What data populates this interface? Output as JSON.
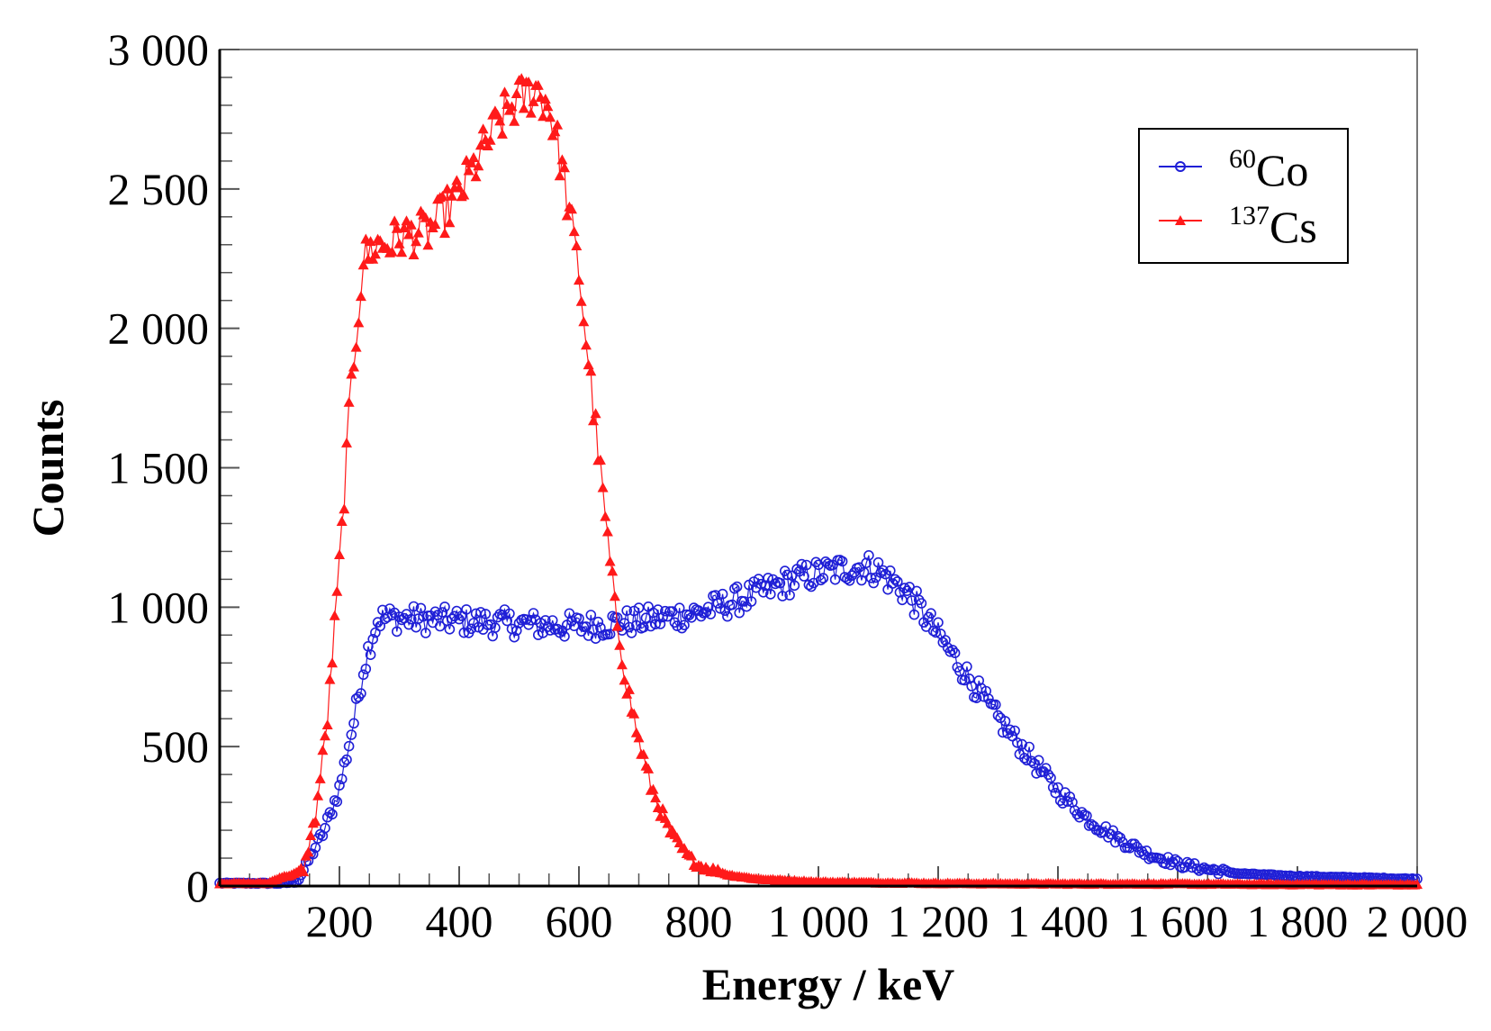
{
  "chart_data": {
    "type": "scatter",
    "title": "",
    "xlabel": "Energy / keV",
    "ylabel": "Counts",
    "xlim": [
      0,
      2000
    ],
    "ylim": [
      0,
      3000
    ],
    "xticks": [
      200,
      400,
      600,
      800,
      1000,
      1200,
      1400,
      1600,
      1800,
      2000
    ],
    "xtick_labels": [
      "200",
      "400",
      "600",
      "800",
      "1 000",
      "1 200",
      "1 400",
      "1 600",
      "1 800",
      "2 000"
    ],
    "yticks": [
      0,
      500,
      1000,
      1500,
      2000,
      2500,
      3000
    ],
    "ytick_labels": [
      "0",
      "500",
      "1 000",
      "1 500",
      "2 000",
      "2 500",
      "3 000"
    ],
    "legend_position": "top-right",
    "series": [
      {
        "name": "60Co",
        "isotope_mass": "60",
        "isotope_symbol": "Co",
        "color": "#1f1fd6",
        "marker": "open-circle",
        "x": [
          0,
          100,
          130,
          150,
          175,
          200,
          225,
          240,
          255,
          265,
          300,
          400,
          500,
          600,
          700,
          800,
          900,
          960,
          1000,
          1050,
          1080,
          1100,
          1150,
          1200,
          1250,
          1300,
          1350,
          1400,
          1450,
          1500,
          1550,
          1600,
          1650,
          1700,
          1800,
          1900,
          2000
        ],
        "y": [
          10,
          10,
          15,
          100,
          200,
          350,
          600,
          780,
          900,
          960,
          960,
          950,
          940,
          930,
          950,
          980,
          1050,
          1100,
          1120,
          1140,
          1145,
          1130,
          1050,
          900,
          750,
          600,
          470,
          340,
          240,
          170,
          115,
          80,
          60,
          45,
          35,
          30,
          25
        ]
      },
      {
        "name": "137Cs",
        "isotope_mass": "137",
        "isotope_symbol": "Cs",
        "color": "#ff1a1a",
        "marker": "filled-triangle",
        "x": [
          0,
          80,
          100,
          120,
          140,
          160,
          180,
          200,
          220,
          240,
          260,
          280,
          300,
          350,
          400,
          450,
          480,
          500,
          530,
          550,
          570,
          600,
          620,
          640,
          660,
          680,
          700,
          720,
          750,
          780,
          800,
          850,
          900,
          1000,
          1200,
          1400,
          1600,
          1800,
          2000
        ],
        "y": [
          10,
          10,
          30,
          40,
          60,
          250,
          600,
          1150,
          1800,
          2250,
          2300,
          2300,
          2330,
          2350,
          2480,
          2680,
          2780,
          2820,
          2860,
          2800,
          2600,
          2200,
          1800,
          1400,
          1000,
          720,
          520,
          360,
          200,
          110,
          75,
          40,
          25,
          15,
          10,
          8,
          8,
          6,
          5
        ]
      }
    ]
  }
}
